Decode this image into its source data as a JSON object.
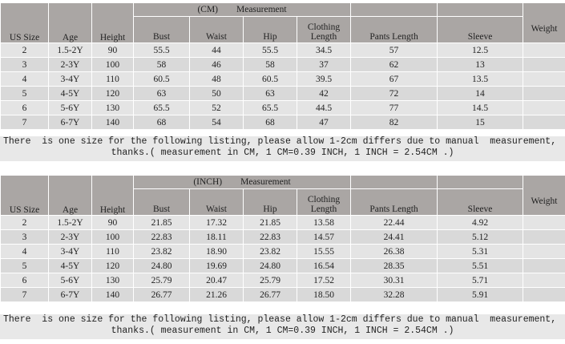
{
  "tables": [
    {
      "unit_label": "(CM)",
      "group_label": "Measurement",
      "columns": [
        "US Size",
        "Age",
        "Height",
        "Bust",
        "Waist",
        "Hip",
        "Clothing Length",
        "Pants Length",
        "Sleeve",
        "Weight"
      ],
      "rows": [
        [
          "2",
          "1.5-2Y",
          "90",
          "55.5",
          "44",
          "55.5",
          "34.5",
          "57",
          "12.5",
          ""
        ],
        [
          "3",
          "2-3Y",
          "100",
          "58",
          "46",
          "58",
          "37",
          "62",
          "13",
          ""
        ],
        [
          "4",
          "3-4Y",
          "110",
          "60.5",
          "48",
          "60.5",
          "39.5",
          "67",
          "13.5",
          ""
        ],
        [
          "5",
          "4-5Y",
          "120",
          "63",
          "50",
          "63",
          "42",
          "72",
          "14",
          ""
        ],
        [
          "6",
          "5-6Y",
          "130",
          "65.5",
          "52",
          "65.5",
          "44.5",
          "77",
          "14.5",
          ""
        ],
        [
          "7",
          "6-7Y",
          "140",
          "68",
          "54",
          "68",
          "47",
          "82",
          "15",
          ""
        ]
      ],
      "note_line1": "There  is one size for the following listing, please allow 1-2cm differs due to manual  measurement,",
      "note_line2": "thanks.( measurement in CM, 1 CM=0.39 INCH, 1 INCH = 2.54CM .)"
    },
    {
      "unit_label": "(INCH)",
      "group_label": "Measurement",
      "columns": [
        "US Size",
        "Age",
        "Height",
        "Bust",
        "Waist",
        "Hip",
        "Clothing Length",
        "Pants Length",
        "Sleeve",
        "Weight"
      ],
      "rows": [
        [
          "2",
          "1.5-2Y",
          "90",
          "21.85",
          "17.32",
          "21.85",
          "13.58",
          "22.44",
          "4.92",
          ""
        ],
        [
          "3",
          "2-3Y",
          "100",
          "22.83",
          "18.11",
          "22.83",
          "14.57",
          "24.41",
          "5.12",
          ""
        ],
        [
          "4",
          "3-4Y",
          "110",
          "23.82",
          "18.90",
          "23.82",
          "15.55",
          "26.38",
          "5.31",
          ""
        ],
        [
          "5",
          "4-5Y",
          "120",
          "24.80",
          "19.69",
          "24.80",
          "16.54",
          "28.35",
          "5.51",
          ""
        ],
        [
          "6",
          "5-6Y",
          "130",
          "25.79",
          "20.47",
          "25.79",
          "17.52",
          "30.31",
          "5.71",
          ""
        ],
        [
          "7",
          "6-7Y",
          "140",
          "26.77",
          "21.26",
          "26.77",
          "18.50",
          "32.28",
          "5.91",
          ""
        ]
      ],
      "note_line1": "There  is one size for the following listing, please allow 1-2cm differs due to manual  measurement,",
      "note_line2": "thanks.( measurement in CM, 1 CM=0.39 INCH, 1 INCH = 2.54CM .)"
    }
  ]
}
